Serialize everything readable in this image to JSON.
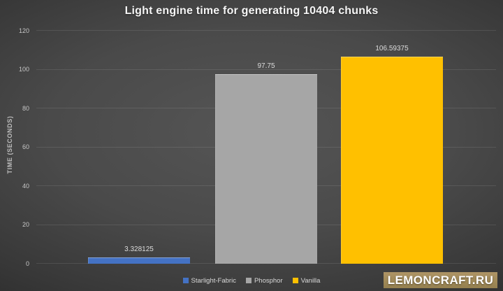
{
  "title": "Light engine time for generating 10404 chunks",
  "y_axis_title": "TIME (SECONDS)",
  "chart_data": {
    "type": "bar",
    "title": "Light engine time for generating 10404 chunks",
    "categories": [
      "Starlight-Fabric",
      "Phosphor",
      "Vanilla"
    ],
    "values": [
      3.328125,
      97.75,
      106.59375
    ],
    "value_labels": [
      "3.328125",
      "97.75",
      "106.59375"
    ],
    "colors": [
      "#4472c4",
      "#a6a6a6",
      "#ffc000"
    ],
    "xlabel": "",
    "ylabel": "TIME (SECONDS)",
    "ylim": [
      0,
      120
    ],
    "yticks": [
      0,
      20,
      40,
      60,
      80,
      100,
      120
    ],
    "grid": true,
    "legend_position": "bottom"
  },
  "legend": {
    "items": [
      {
        "label": "Starlight-Fabric",
        "color": "#4472c4"
      },
      {
        "label": "Phosphor",
        "color": "#a6a6a6"
      },
      {
        "label": "Vanilla",
        "color": "#ffc000"
      }
    ]
  },
  "watermark": {
    "text": "LEMONCRAFT.RU",
    "bg_color": "#a18a58"
  }
}
